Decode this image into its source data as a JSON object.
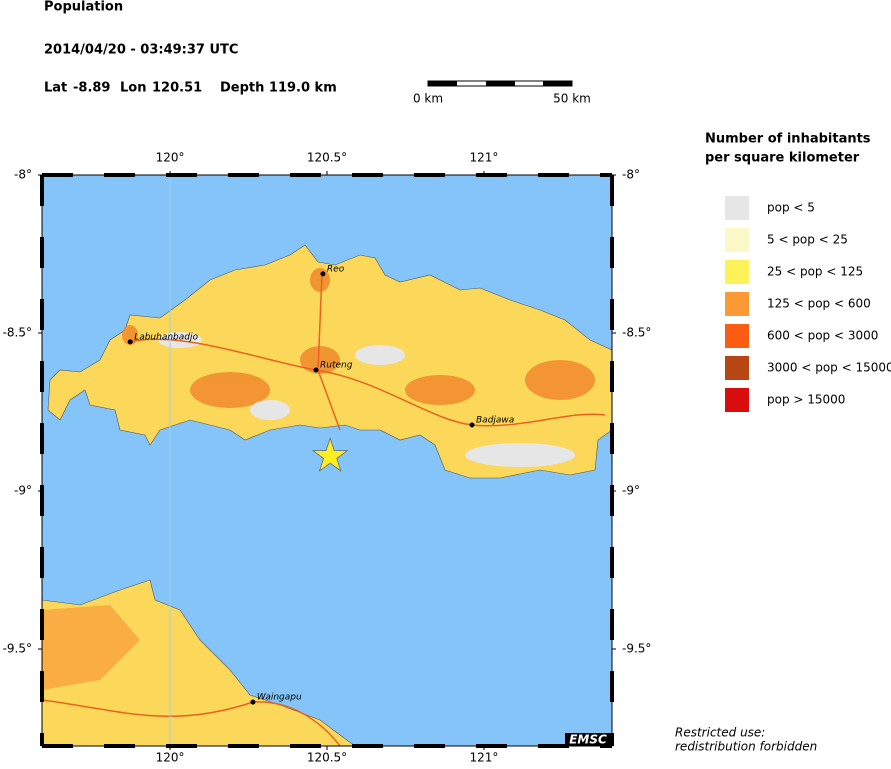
{
  "header": {
    "title": "Population",
    "datetime": "2014/04/20 - 03:49:37 UTC",
    "lat": {
      "label": "Lat",
      "value": -8.89
    },
    "lon": {
      "label": "Lon",
      "value": 120.51
    },
    "depth": "Depth 119.0 km"
  },
  "scale_bar": {
    "start": "0 km",
    "end": "50 km"
  },
  "map": {
    "lonlim": [
      119.592,
      121.408
    ],
    "latlim": [
      -9.807,
      -8
    ],
    "lon_ticks": [
      {
        "value": 120,
        "label": "120°"
      },
      {
        "value": 120.5,
        "label": "120.5°"
      },
      {
        "value": 121,
        "label": "121°"
      }
    ],
    "lat_ticks": [
      {
        "value": -8,
        "label": "-8°"
      },
      {
        "value": -8.5,
        "label": "-8.5°"
      },
      {
        "value": -9,
        "label": "-9°"
      },
      {
        "value": -9.5,
        "label": "-9.5°"
      }
    ],
    "cities": [
      {
        "name": "Reo",
        "lon": 120.487,
        "lat": -8.313
      },
      {
        "name": "Labuhanbadjo",
        "lon": 119.873,
        "lat": -8.528
      },
      {
        "name": "Ruteng",
        "lon": 120.465,
        "lat": -8.617
      },
      {
        "name": "Badjawa",
        "lon": 120.962,
        "lat": -8.791
      },
      {
        "name": "Waingapu",
        "lon": 120.264,
        "lat": -9.668
      }
    ],
    "credit": "EMSC"
  },
  "legend": {
    "title": [
      "Number of inhabitants",
      "per square kilometer"
    ],
    "items": [
      {
        "label": "pop < 5",
        "color": "#e6e6e6"
      },
      {
        "label": "5 < pop < 25",
        "color": "#fbf8c8"
      },
      {
        "label": "25 < pop < 125",
        "color": "#fdf25a"
      },
      {
        "label": "125 < pop < 600",
        "color": "#fb9a34"
      },
      {
        "label": "600 < pop < 3000",
        "color": "#fb5c14"
      },
      {
        "label": "3000 < pop < 15000",
        "color": "#b84514"
      },
      {
        "label": "pop > 15000",
        "color": "#d80e0e"
      }
    ]
  },
  "footer": [
    "Restricted use:",
    "redistribution forbidden"
  ]
}
